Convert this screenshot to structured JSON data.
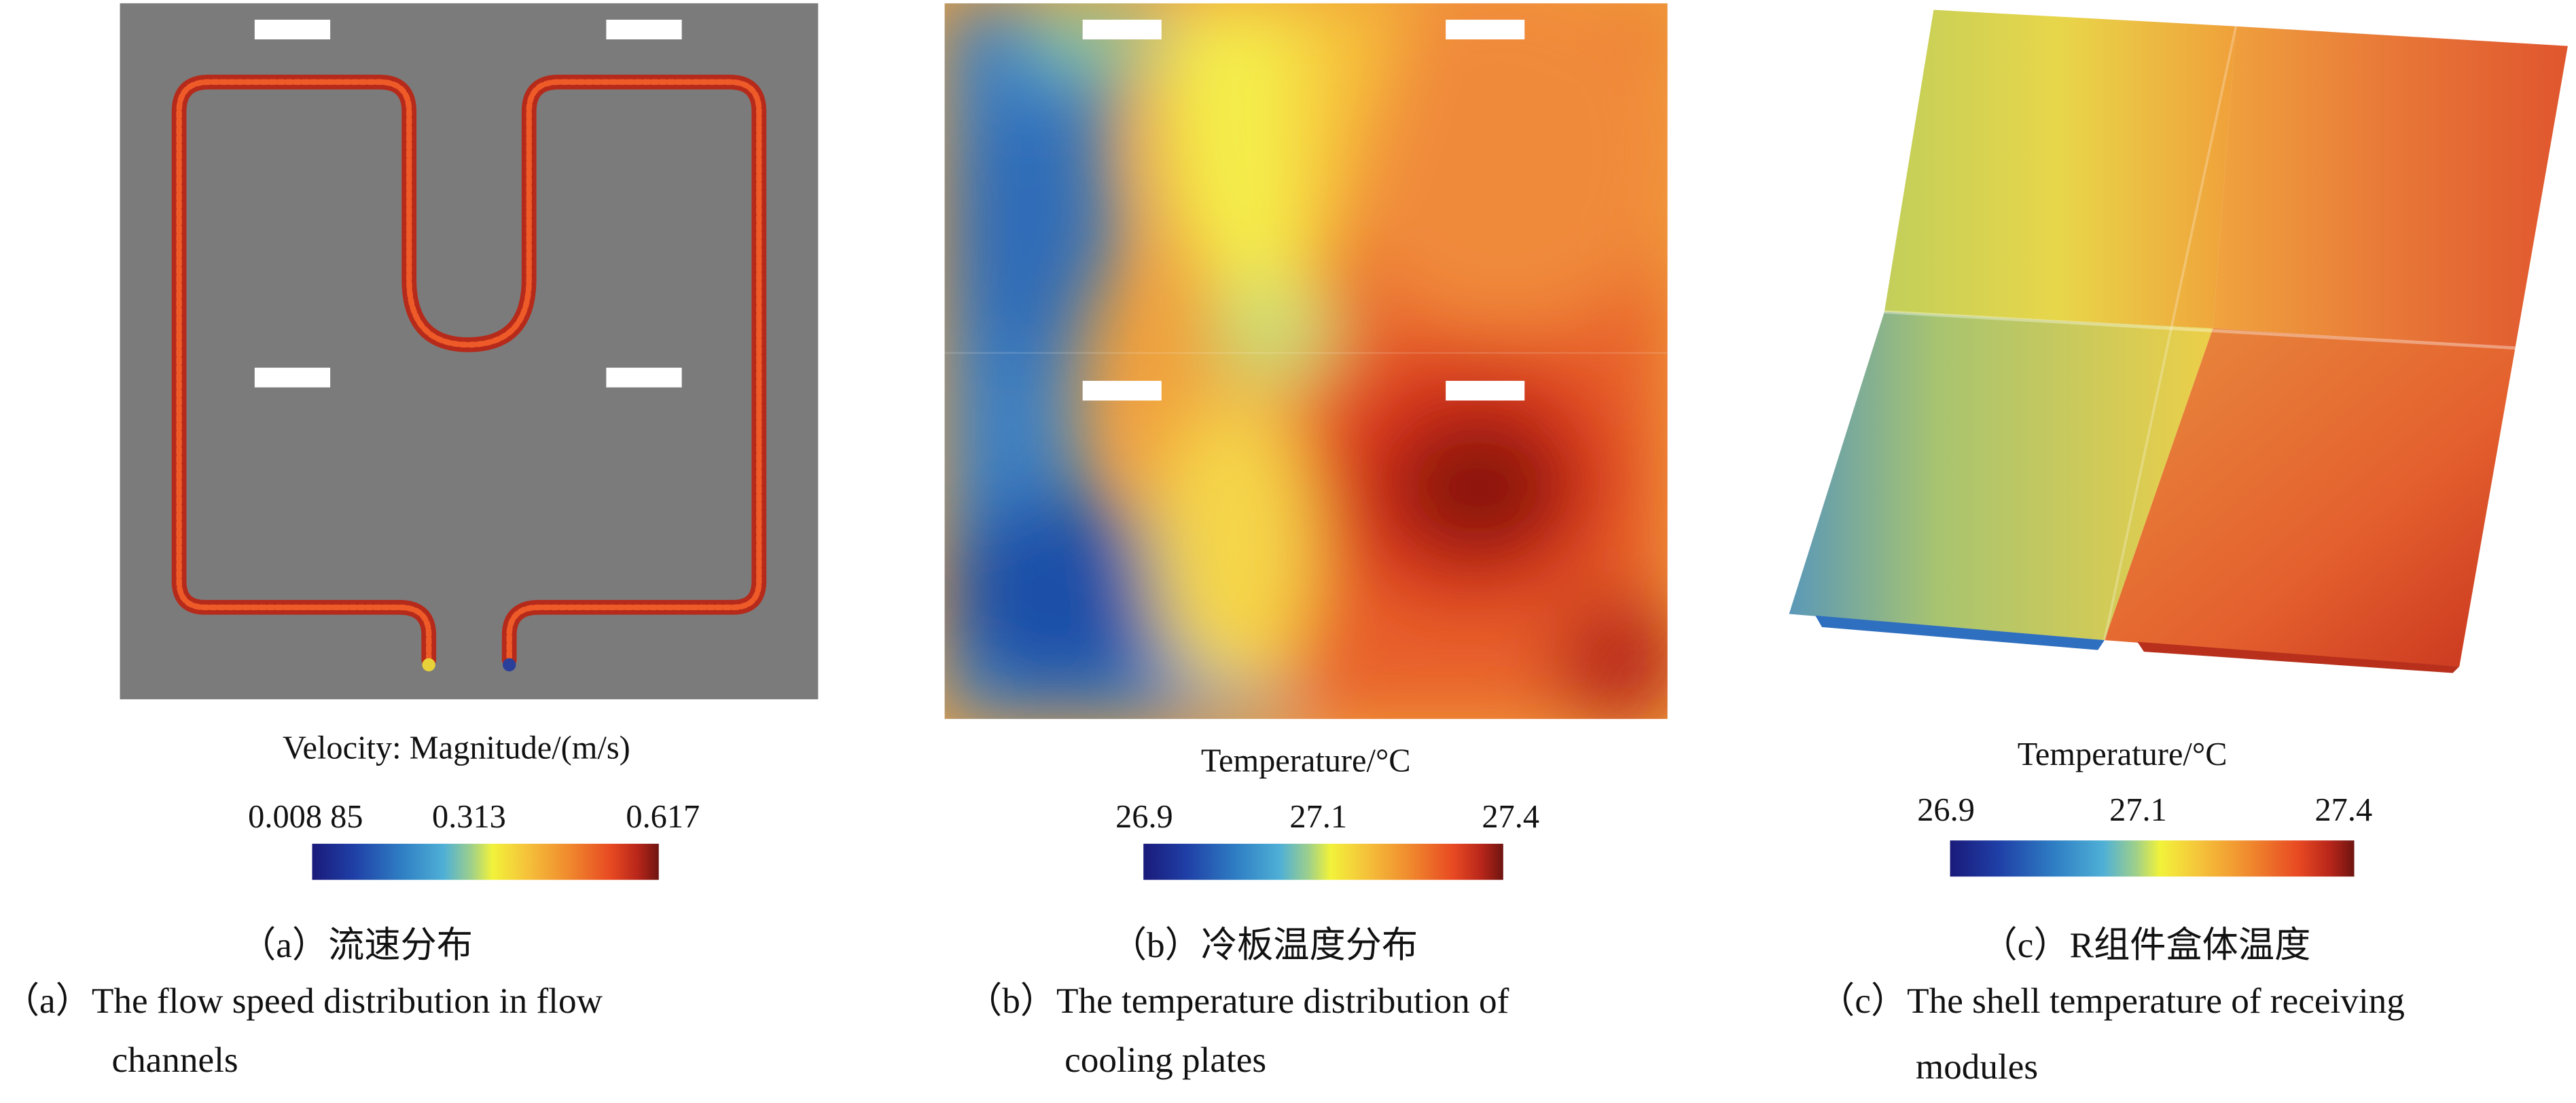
{
  "panels": [
    {
      "id": "a",
      "colorbar_title": "Velocity: Magnitude/(m/s)",
      "ticks": [
        "0.008 85",
        "0.313",
        "0.617"
      ],
      "caption_cn": "（a）流速分布",
      "caption_en_line1": "（a）The flow speed distribution in flow",
      "caption_en_line2": "channels"
    },
    {
      "id": "b",
      "colorbar_title": "Temperature/°C",
      "ticks": [
        "26.9",
        "27.1",
        "27.4"
      ],
      "caption_cn": "（b）冷板温度分布",
      "caption_en_line1": "（b）The temperature distribution of",
      "caption_en_line2": "cooling plates"
    },
    {
      "id": "c",
      "colorbar_title": "Temperature/°C",
      "ticks": [
        "26.9",
        "27.1",
        "27.4"
      ],
      "caption_cn": "（c）R组件盒体温度",
      "caption_en_line1": "（c）The shell temperature of receiving",
      "caption_en_line2": "modules"
    }
  ]
}
